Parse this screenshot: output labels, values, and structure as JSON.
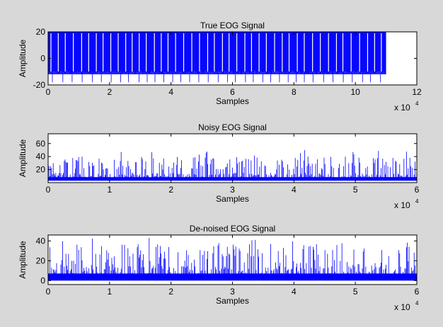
{
  "colors": {
    "figure_background": "#d8d8d8",
    "axes_background": "#ffffff",
    "signal": "#0000ff",
    "axis": "#000000"
  },
  "chart_data": [
    {
      "type": "line",
      "title": "True EOG Signal",
      "xlabel": "Samples",
      "ylabel": "Amplitude",
      "x_exponent_label": "x 10",
      "x_exponent_power": "4",
      "xlim": [
        0,
        120000
      ],
      "ylim": [
        -20,
        20
      ],
      "xticks": [
        0,
        20000,
        40000,
        60000,
        80000,
        100000,
        120000
      ],
      "xtick_labels": [
        "0",
        "2",
        "4",
        "6",
        "8",
        "10",
        "12"
      ],
      "yticks": [
        -20,
        0,
        20
      ],
      "ytick_labels": [
        "-20",
        "0",
        "20"
      ],
      "grid": false,
      "series": [
        {
          "x_range": [
            0,
            110000
          ],
          "baseline": -12,
          "max": 20,
          "min": -20,
          "description_values": {
            "dense_oscillation_low": -12,
            "dense_oscillation_high": 20
          }
        }
      ]
    },
    {
      "type": "line",
      "title": "Noisy EOG Signal",
      "xlabel": "Samples",
      "ylabel": "Amplitude",
      "x_exponent_label": "x 10",
      "x_exponent_power": "4",
      "xlim": [
        0,
        60000
      ],
      "ylim": [
        0,
        75
      ],
      "xticks": [
        0,
        10000,
        20000,
        30000,
        40000,
        50000,
        60000
      ],
      "xtick_labels": [
        "0",
        "1",
        "2",
        "3",
        "4",
        "5",
        "6"
      ],
      "yticks": [
        20,
        40,
        60
      ],
      "ytick_labels": [
        "20",
        "40",
        "60"
      ],
      "grid": false,
      "series": [
        {
          "x_range": [
            0,
            60000
          ],
          "baseline": 3,
          "typical_peak": 40,
          "max": 52
        }
      ]
    },
    {
      "type": "line",
      "title": "De-noised EOG Signal",
      "xlabel": "Samples",
      "ylabel": "Amplitude",
      "x_exponent_label": "x 10",
      "x_exponent_power": "4",
      "xlim": [
        0,
        60000
      ],
      "ylim": [
        -4,
        46
      ],
      "xticks": [
        0,
        10000,
        20000,
        30000,
        40000,
        50000,
        60000
      ],
      "xtick_labels": [
        "0",
        "1",
        "2",
        "3",
        "4",
        "5",
        "6"
      ],
      "yticks": [
        0,
        20,
        40
      ],
      "ytick_labels": [
        "0",
        "20",
        "40"
      ],
      "grid": false,
      "series": [
        {
          "x_range": [
            0,
            60000
          ],
          "baseline": 0,
          "typical_peak": 37,
          "max": 44
        }
      ]
    }
  ]
}
